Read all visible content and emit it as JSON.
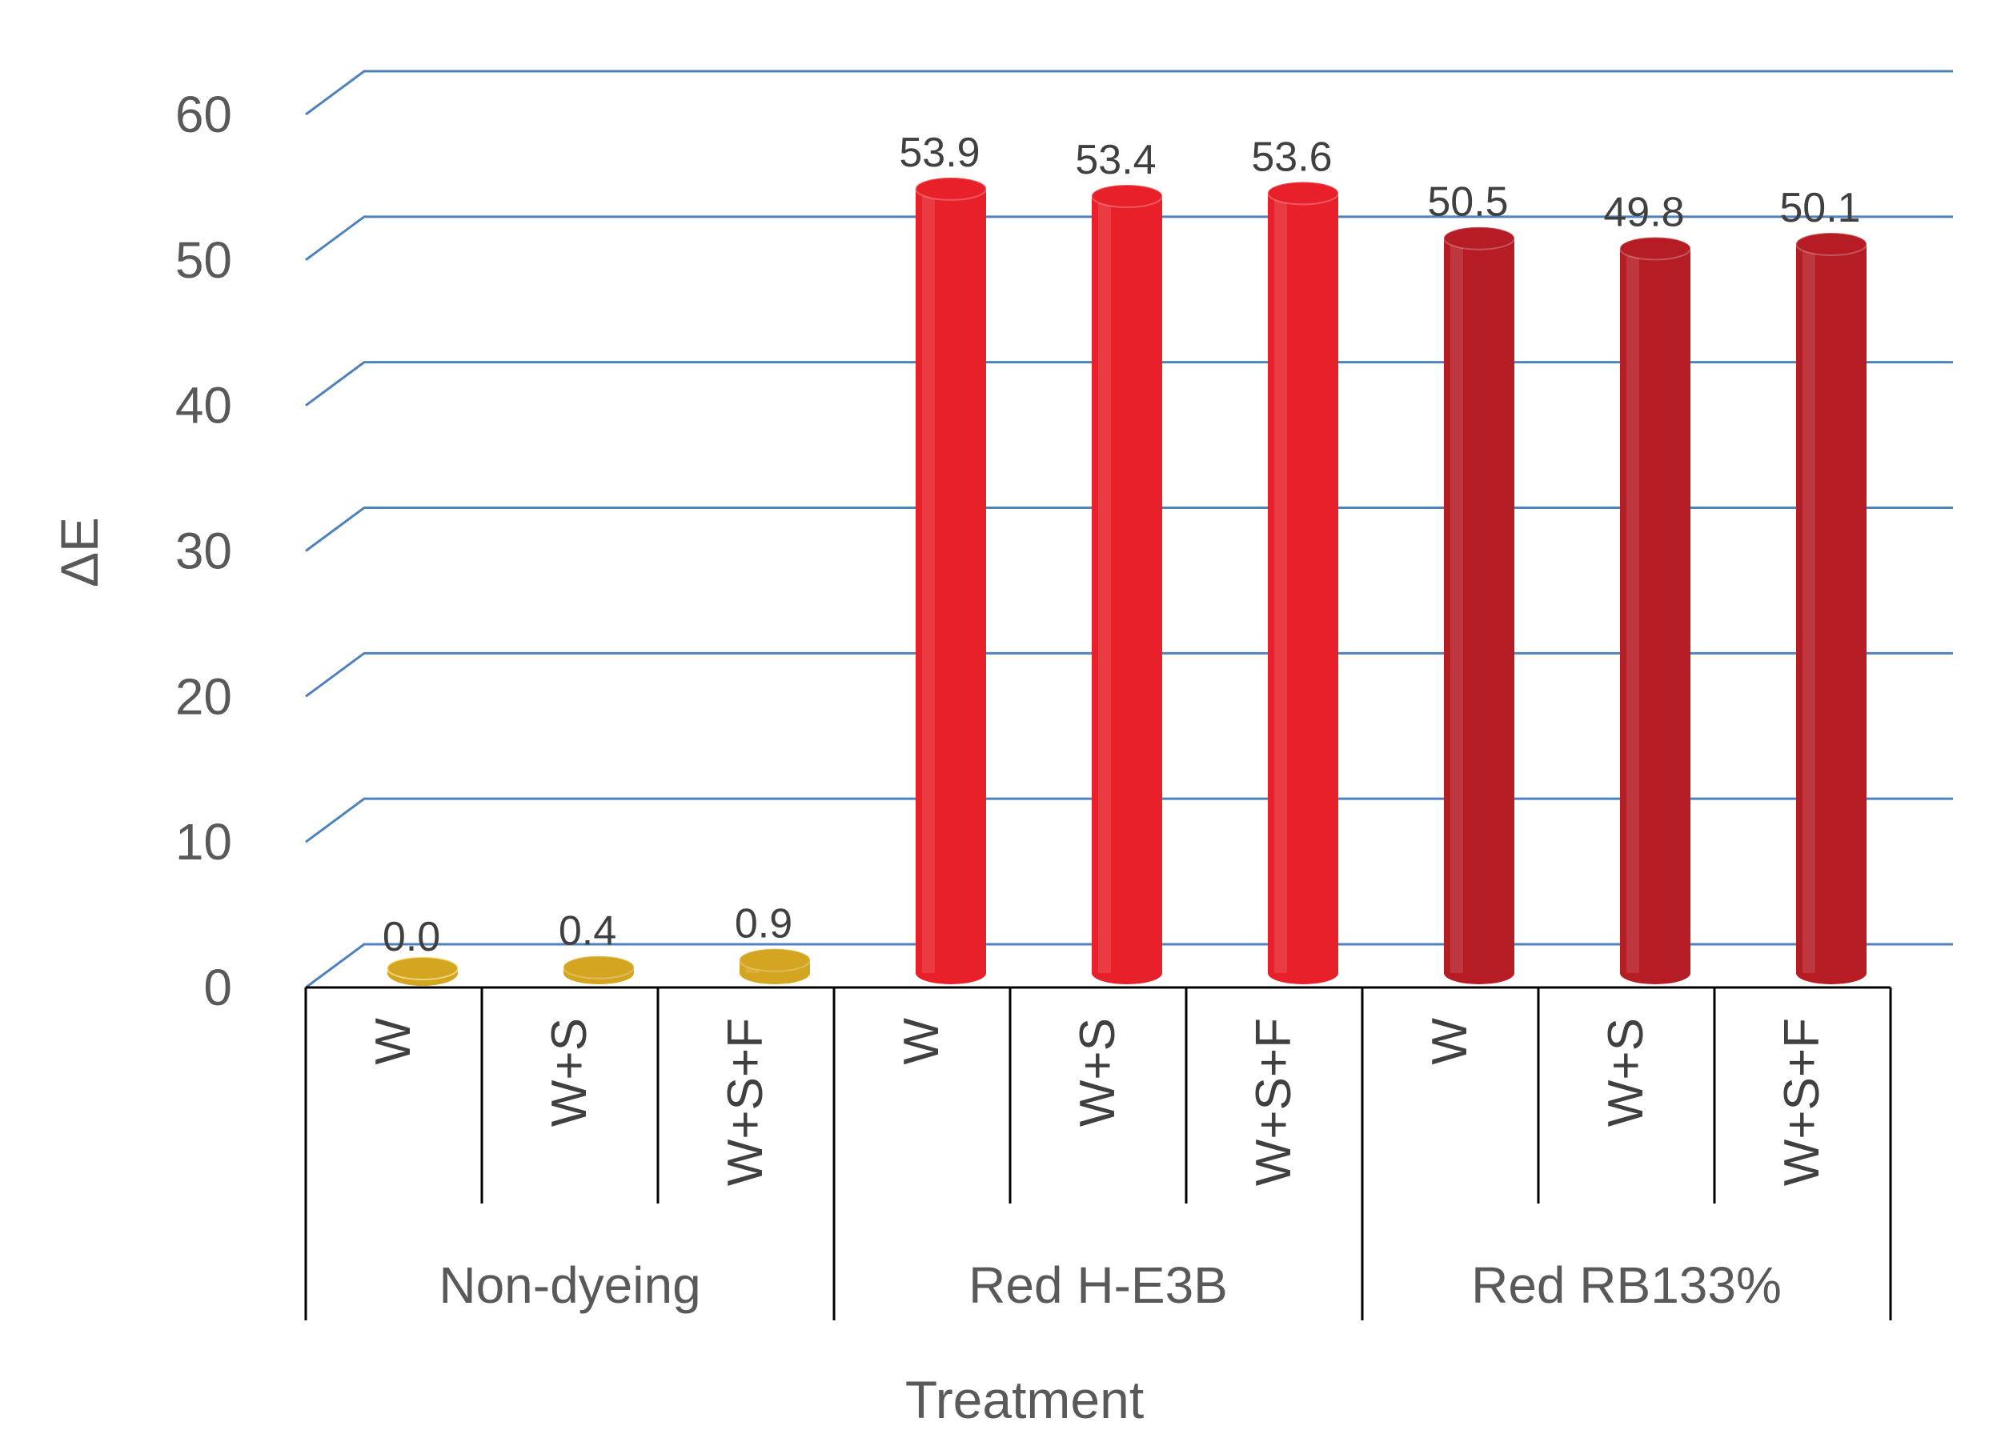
{
  "chart_data": {
    "type": "bar",
    "style": "3d-cylinder",
    "title": "",
    "xlabel": "Treatment",
    "ylabel": "ΔE",
    "ylim": [
      0,
      60
    ],
    "yticks": [
      "0",
      "10",
      "20",
      "30",
      "40",
      "50",
      "60"
    ],
    "grid": true,
    "legend": "none",
    "groups": [
      {
        "name": "Non-dyeing",
        "color": "#D4A520",
        "categories": [
          "W",
          "W+S",
          "W+S+F"
        ],
        "values": [
          0.0,
          0.4,
          0.9
        ],
        "labels": [
          "0.0",
          "0.4",
          "0.9"
        ]
      },
      {
        "name": "Red H-E3B",
        "color": "#E8202A",
        "categories": [
          "W",
          "W+S",
          "W+S+F"
        ],
        "values": [
          53.9,
          53.4,
          53.6
        ],
        "labels": [
          "53.9",
          "53.4",
          "53.6"
        ]
      },
      {
        "name": "Red RB133%",
        "color": "#B51C24",
        "categories": [
          "W",
          "W+S",
          "W+S+F"
        ],
        "values": [
          50.5,
          49.8,
          50.1
        ],
        "labels": [
          "50.5",
          "49.8",
          "50.1"
        ]
      }
    ],
    "colors": {
      "grid": "#4F81BD",
      "axis": "#000000"
    }
  }
}
